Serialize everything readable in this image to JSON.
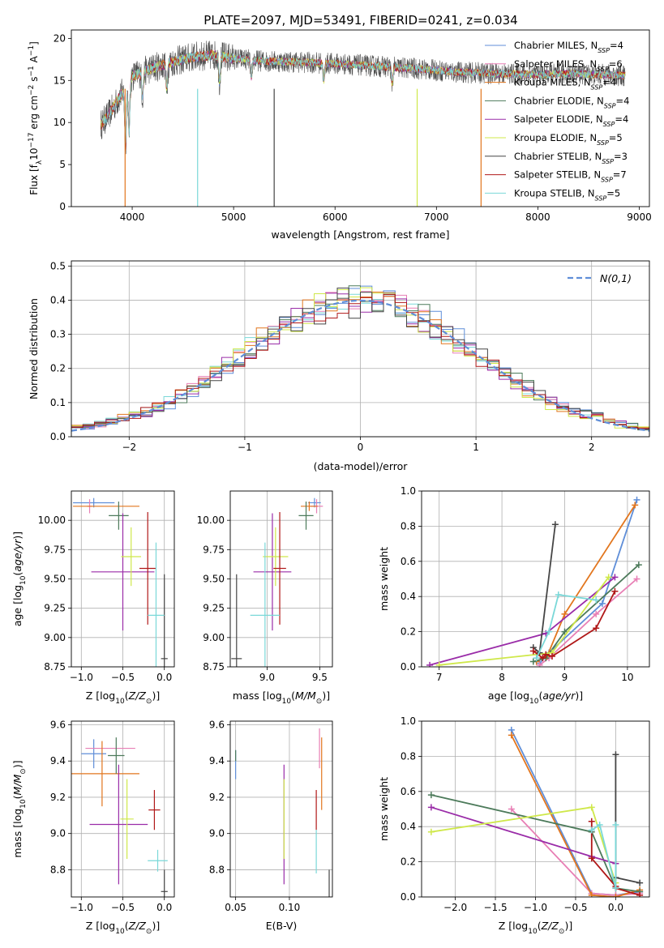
{
  "title": "PLATE=2097, MJD=53491, FIBERID=0241, z=0.034",
  "series_names": [
    "Chabrier MILES, N_SSP=4",
    "Salpeter MILES, N_SSP=6",
    "Kroupa MILES, N_SSP=4",
    "Chabrier ELODIE, N_SSP=4",
    "Salpeter ELODIE, N_SSP=4",
    "Kroupa ELODIE, N_SSP=5",
    "Chabrier STELIB, N_SSP=3",
    "Salpeter STELIB, N_SSP=7",
    "Kroupa STELIB, N_SSP=5"
  ],
  "colors": [
    "#5f8ed8",
    "#e87fb5",
    "#e2761e",
    "#4c7a5a",
    "#9a2ca8",
    "#cfe84a",
    "#454545",
    "#b01818",
    "#7ad8d8"
  ],
  "chart_data": [
    {
      "id": "spectrum",
      "type": "line",
      "xlabel": "wavelength [Angstrom, rest frame]",
      "ylabel": "Flux [f_λ10^-17 erg cm^-2 s^-1 A^-1]",
      "xlim": [
        3400,
        9100
      ],
      "ylim": [
        0,
        21
      ],
      "xticks": [
        4000,
        5000,
        6000,
        7000,
        8000,
        9000
      ],
      "yticks": [
        0,
        5,
        10,
        15,
        20
      ],
      "legend": "upper right",
      "continuum": [
        [
          3700,
          9.8
        ],
        [
          3800,
          11.5
        ],
        [
          3900,
          13.5
        ],
        [
          4000,
          15.5
        ],
        [
          4200,
          16.5
        ],
        [
          4400,
          17.2
        ],
        [
          4600,
          17.8
        ],
        [
          4800,
          18.0
        ],
        [
          5000,
          17.6
        ],
        [
          5300,
          17.3
        ],
        [
          5600,
          17.2
        ],
        [
          6000,
          17.0
        ],
        [
          6400,
          16.7
        ],
        [
          6800,
          16.4
        ],
        [
          7200,
          16.0
        ],
        [
          7600,
          15.8
        ],
        [
          8000,
          15.7
        ],
        [
          8400,
          15.8
        ],
        [
          8800,
          15.6
        ]
      ],
      "absorption": [
        [
          3934,
          7
        ],
        [
          3969,
          6
        ],
        [
          4102,
          3
        ],
        [
          4340,
          3
        ],
        [
          4861,
          3
        ],
        [
          5175,
          2
        ],
        [
          5890,
          2
        ],
        [
          6563,
          2
        ]
      ],
      "dropouts": [
        [
          3930,
          "#e2761e"
        ],
        [
          4645,
          "#7ad8d8"
        ],
        [
          5400,
          "#454545"
        ],
        [
          6810,
          "#cfe84a"
        ],
        [
          7440,
          "#e2761e"
        ]
      ]
    },
    {
      "id": "residuals",
      "type": "histogram",
      "xlabel": "(data-model)/error",
      "ylabel": "Normed distribution",
      "xlim": [
        -2.5,
        2.5
      ],
      "ylim": [
        0,
        0.515
      ],
      "xticks": [
        -2,
        -1,
        0,
        1,
        2
      ],
      "yticks": [
        0.0,
        0.1,
        0.2,
        0.3,
        0.4,
        0.5
      ],
      "reference_curve": "N(0,1)",
      "legend": "upper right",
      "bin_width": 0.1
    },
    {
      "id": "age_vs_Z",
      "type": "scatter",
      "xlabel": "Z [log10(Z/Z_sun)]",
      "ylabel": "age [log10(age/yr)]",
      "xlim": [
        -1.12,
        0.12
      ],
      "ylim": [
        8.75,
        10.25
      ],
      "xticks": [
        -1.0,
        -0.5,
        0.0
      ],
      "yticks": [
        8.75,
        9.0,
        9.25,
        9.5,
        9.75,
        10.0
      ],
      "points": [
        {
          "x": -0.85,
          "y": 10.15,
          "xerr": 0.25,
          "yerr": 0.04
        },
        {
          "x": -0.9,
          "y": 10.12,
          "xerr": 0.03,
          "yerr": 0.06
        },
        {
          "x": -0.7,
          "y": 10.12,
          "xerr": 0.4,
          "yerr": 0.0
        },
        {
          "x": -0.55,
          "y": 10.04,
          "xerr": 0.12,
          "yerr": 0.12
        },
        {
          "x": -0.5,
          "y": 9.56,
          "xerr": 0.38,
          "yerr": 0.5
        },
        {
          "x": -0.4,
          "y": 9.69,
          "xerr": 0.12,
          "yerr": 0.25
        },
        {
          "x": 0.0,
          "y": 8.82,
          "xerr": 0.04,
          "yerr": 0.72
        },
        {
          "x": -0.2,
          "y": 9.59,
          "xerr": 0.1,
          "yerr": 0.48
        },
        {
          "x": -0.1,
          "y": 9.19,
          "xerr": 0.1,
          "yerr": 0.62
        }
      ]
    },
    {
      "id": "age_vs_mass",
      "type": "scatter",
      "xlabel": "mass [log10(M/M_sun)]",
      "ylabel": "",
      "xlim": [
        8.65,
        9.62
      ],
      "ylim": [
        8.75,
        10.25
      ],
      "xticks": [
        9.0,
        9.5
      ],
      "yticks": [
        8.75,
        9.0,
        9.25,
        9.5,
        9.75,
        10.0
      ],
      "points": [
        {
          "x": 9.45,
          "y": 10.15,
          "xerr": 0.06,
          "yerr": 0.04
        },
        {
          "x": 9.47,
          "y": 10.12,
          "xerr": 0.06,
          "yerr": 0.06
        },
        {
          "x": 9.4,
          "y": 10.12,
          "xerr": 0.08,
          "yerr": 0.04
        },
        {
          "x": 9.37,
          "y": 10.04,
          "xerr": 0.07,
          "yerr": 0.12
        },
        {
          "x": 9.05,
          "y": 9.56,
          "xerr": 0.18,
          "yerr": 0.5
        },
        {
          "x": 9.08,
          "y": 9.69,
          "xerr": 0.12,
          "yerr": 0.25
        },
        {
          "x": 8.71,
          "y": 8.82,
          "xerr": 0.05,
          "yerr": 0.72
        },
        {
          "x": 9.12,
          "y": 9.59,
          "xerr": 0.06,
          "yerr": 0.48
        },
        {
          "x": 8.98,
          "y": 9.19,
          "xerr": 0.14,
          "yerr": 0.62
        }
      ]
    },
    {
      "id": "weight_vs_age",
      "type": "line",
      "xlabel": "age [log10(age/yr)]",
      "ylabel": "mass weight",
      "xlim": [
        6.72,
        10.35
      ],
      "ylim": [
        0,
        1.0
      ],
      "xticks": [
        7,
        8,
        9,
        10
      ],
      "yticks": [
        0.0,
        0.2,
        0.4,
        0.6,
        0.8,
        1.0
      ],
      "series": [
        {
          "x": [
            8.6,
            8.75,
            9.6,
            10.15
          ],
          "y": [
            0.02,
            0.08,
            0.36,
            0.95
          ]
        },
        {
          "x": [
            8.6,
            8.75,
            9.5,
            10.15
          ],
          "y": [
            0.01,
            0.05,
            0.3,
            0.5
          ]
        },
        {
          "x": [
            8.55,
            8.72,
            9.0,
            10.12
          ],
          "y": [
            0.03,
            0.06,
            0.3,
            0.92
          ]
        },
        {
          "x": [
            8.5,
            8.7,
            9.0,
            10.18
          ],
          "y": [
            0.03,
            0.05,
            0.2,
            0.58
          ]
        },
        {
          "x": [
            6.85,
            8.7,
            9.8
          ],
          "y": [
            0.01,
            0.19,
            0.51
          ]
        },
        {
          "x": [
            7.0,
            8.8,
            9.7
          ],
          "y": [
            0.01,
            0.08,
            0.51
          ]
        },
        {
          "x": [
            8.5,
            8.6,
            8.85
          ],
          "y": [
            0.11,
            0.08,
            0.81
          ]
        },
        {
          "x": [
            8.5,
            8.65,
            8.7,
            8.8,
            9.5,
            9.8
          ],
          "y": [
            0.09,
            0.05,
            0.07,
            0.06,
            0.22,
            0.43
          ]
        },
        {
          "x": [
            8.55,
            8.75,
            8.9,
            9.5
          ],
          "y": [
            0.05,
            0.2,
            0.41,
            0.38
          ]
        }
      ]
    },
    {
      "id": "mass_vs_Z",
      "type": "scatter",
      "xlabel": "Z [log10(Z/Z_sun)]",
      "ylabel": "mass [log10(M/M_sun)]",
      "xlim": [
        -1.12,
        0.12
      ],
      "ylim": [
        8.65,
        9.62
      ],
      "xticks": [
        -1.0,
        -0.5,
        0.0
      ],
      "yticks": [
        8.8,
        9.0,
        9.2,
        9.4,
        9.6
      ],
      "points": [
        {
          "x": -0.85,
          "y": 9.44,
          "xerr": 0.15,
          "yerr": 0.08
        },
        {
          "x": -0.65,
          "y": 9.47,
          "xerr": 0.3,
          "yerr": 0.0
        },
        {
          "x": -0.75,
          "y": 9.33,
          "xerr": 0.45,
          "yerr": 0.18
        },
        {
          "x": -0.58,
          "y": 9.43,
          "xerr": 0.1,
          "yerr": 0.1
        },
        {
          "x": -0.55,
          "y": 9.05,
          "xerr": 0.35,
          "yerr": 0.33
        },
        {
          "x": -0.45,
          "y": 9.08,
          "xerr": 0.08,
          "yerr": 0.22
        },
        {
          "x": 0.0,
          "y": 8.68,
          "xerr": 0.04,
          "yerr": 0.12
        },
        {
          "x": -0.12,
          "y": 9.13,
          "xerr": 0.07,
          "yerr": 0.11
        },
        {
          "x": -0.08,
          "y": 8.85,
          "xerr": 0.12,
          "yerr": 0.06
        }
      ]
    },
    {
      "id": "mass_vs_ebv",
      "type": "scatter",
      "xlabel": "E(B-V)",
      "ylabel": "",
      "xlim": [
        0.045,
        0.14
      ],
      "ylim": [
        8.65,
        9.62
      ],
      "xticks": [
        0.05,
        0.1
      ],
      "yticks": [
        8.8,
        9.0,
        9.2,
        9.4,
        9.6
      ],
      "points": [
        {
          "x": 0.05,
          "y": 9.38,
          "yerr": 0.08
        },
        {
          "x": 0.128,
          "y": 9.47,
          "yerr": 0.11
        },
        {
          "x": 0.13,
          "y": 9.33,
          "yerr": 0.2
        },
        {
          "x": 0.05,
          "y": 9.43,
          "yerr": 0.03
        },
        {
          "x": 0.095,
          "y": 9.05,
          "yerr": 0.33
        },
        {
          "x": 0.095,
          "y": 9.08,
          "yerr": 0.22
        },
        {
          "x": 0.137,
          "y": 8.68,
          "yerr": 0.12
        },
        {
          "x": 0.125,
          "y": 9.13,
          "yerr": 0.11
        },
        {
          "x": 0.125,
          "y": 8.9,
          "yerr": 0.12
        }
      ]
    },
    {
      "id": "weight_vs_Z",
      "type": "line",
      "xlabel": "Z [log10(Z/Z_sun)]",
      "ylabel": "mass weight",
      "xlim": [
        -2.42,
        0.42
      ],
      "ylim": [
        0,
        1.0
      ],
      "xticks": [
        -2.0,
        -1.5,
        -1.0,
        -0.5,
        0.0
      ],
      "yticks": [
        0.0,
        0.2,
        0.4,
        0.6,
        0.8,
        1.0
      ],
      "series": [
        {
          "x": [
            -1.3,
            -0.3,
            0.0,
            0.3
          ],
          "y": [
            0.95,
            0.02,
            0.01,
            0.03
          ]
        },
        {
          "x": [
            -1.3,
            -0.3,
            0.0,
            0.3
          ],
          "y": [
            0.5,
            0.02,
            0.01,
            0.02
          ]
        },
        {
          "x": [
            -1.3,
            -0.3,
            0.0,
            0.3
          ],
          "y": [
            0.92,
            0.01,
            0.0,
            0.04
          ]
        },
        {
          "x": [
            -2.3,
            -0.3,
            0.0,
            0.3
          ],
          "y": [
            0.58,
            0.37,
            0.05,
            0.03
          ]
        },
        {
          "x": [
            -2.3,
            -0.3,
            0.0
          ],
          "y": [
            0.51,
            0.23,
            0.19
          ]
        },
        {
          "x": [
            -2.3,
            -0.3,
            0.0
          ],
          "y": [
            0.37,
            0.51,
            0.08
          ]
        },
        {
          "x": [
            0.0,
            0.0,
            0.3
          ],
          "y": [
            0.81,
            0.11,
            0.08
          ]
        },
        {
          "x": [
            -0.3,
            -0.3,
            0.0,
            0.0,
            0.3
          ],
          "y": [
            0.43,
            0.22,
            0.06,
            0.05,
            0.01
          ]
        },
        {
          "x": [
            -0.3,
            -0.2,
            0.0,
            0.0
          ],
          "y": [
            0.38,
            0.41,
            0.05,
            0.41
          ]
        }
      ]
    }
  ]
}
